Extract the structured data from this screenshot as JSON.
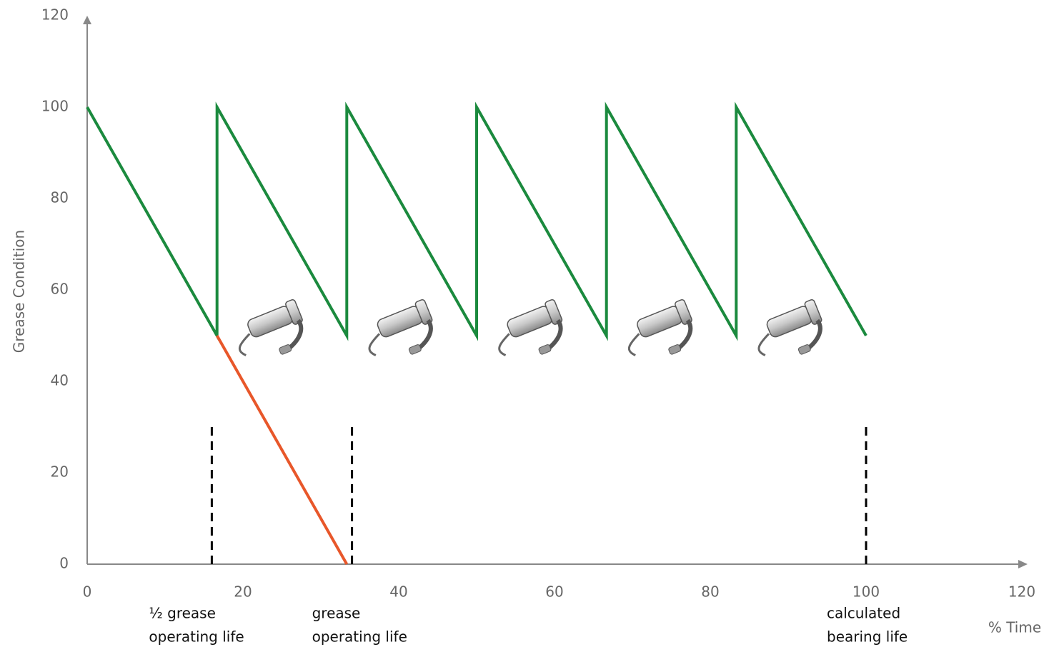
{
  "chart_data": {
    "type": "line",
    "xlabel": "% Time",
    "ylabel": "Grease Condition",
    "xlim": [
      0,
      120
    ],
    "ylim": [
      0,
      120
    ],
    "xticks": [
      0,
      20,
      40,
      60,
      80,
      100,
      120
    ],
    "yticks": [
      0,
      20,
      40,
      60,
      80,
      100,
      120
    ],
    "grid": false,
    "series": [
      {
        "color": "#1b8a3e",
        "x": [
          0,
          16.67,
          16.67,
          33.33,
          33.33,
          50,
          50,
          66.67,
          66.67,
          83.33,
          83.33,
          100
        ],
        "values": [
          100,
          50,
          100,
          50,
          100,
          50,
          100,
          50,
          100,
          50,
          100,
          50
        ]
      },
      {
        "color": "#e8572a",
        "x": [
          16.67,
          33.33
        ],
        "values": [
          50,
          0
        ]
      }
    ],
    "annotations": [
      {
        "x": 16,
        "y": 30,
        "color": "#000000",
        "text": [
          "½ grease",
          "operating life"
        ]
      },
      {
        "x": 34,
        "y": 30,
        "color": "#000000",
        "text": [
          "grease",
          "operating life"
        ]
      },
      {
        "x": 100,
        "y": 30,
        "color": "#000000",
        "text": [
          "calculated",
          "bearing life"
        ]
      }
    ]
  }
}
